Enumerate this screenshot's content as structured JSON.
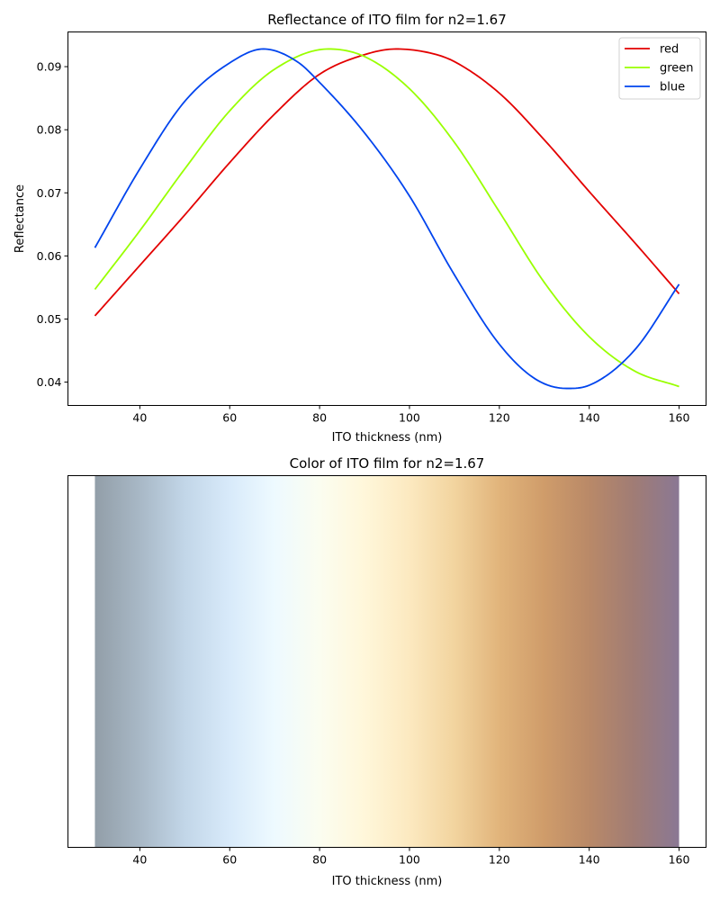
{
  "chart_data": [
    {
      "type": "line",
      "title": "Reflectance of ITO film for n2=1.67",
      "xlabel": "ITO thickness (nm)",
      "ylabel": "Reflectance",
      "xlim": [
        24,
        166
      ],
      "ylim": [
        0.0363,
        0.0955
      ],
      "xticks": [
        "40",
        "60",
        "80",
        "100",
        "120",
        "140",
        "160"
      ],
      "yticks": [
        "0.04",
        "0.05",
        "0.06",
        "0.07",
        "0.08",
        "0.09"
      ],
      "grid": false,
      "legend": "top-right",
      "series": [
        {
          "name": "red",
          "color": "#e30000",
          "x": [
            30,
            40,
            50,
            60,
            70,
            80,
            90,
            97,
            105,
            110,
            120,
            130,
            140,
            150,
            160
          ],
          "y": [
            0.0505,
            0.0585,
            0.0665,
            0.0748,
            0.0825,
            0.0888,
            0.0919,
            0.0928,
            0.0921,
            0.0908,
            0.0858,
            0.0784,
            0.0702,
            0.0622,
            0.054
          ]
        },
        {
          "name": "green",
          "color": "#99ff00",
          "x": [
            30,
            40,
            50,
            60,
            70,
            82,
            90,
            100,
            110,
            120,
            130,
            140,
            150,
            160
          ],
          "y": [
            0.0547,
            0.064,
            0.0738,
            0.083,
            0.0896,
            0.0928,
            0.0916,
            0.0865,
            0.078,
            0.067,
            0.0558,
            0.0472,
            0.0418,
            0.0393
          ]
        },
        {
          "name": "blue",
          "color": "#0044ee",
          "x": [
            30,
            40,
            50,
            60,
            67.5,
            75,
            80,
            90,
            100,
            110,
            120,
            128,
            135,
            140,
            150,
            160
          ],
          "y": [
            0.0613,
            0.0738,
            0.0845,
            0.0906,
            0.0928,
            0.0908,
            0.0875,
            0.0795,
            0.0695,
            0.057,
            0.046,
            0.0405,
            0.039,
            0.0395,
            0.045,
            0.0555
          ]
        }
      ]
    },
    {
      "type": "heatmap",
      "title": "Color of ITO film for n2=1.67",
      "xlabel": "ITO thickness (nm)",
      "xlim": [
        24,
        166
      ],
      "xticks": [
        "40",
        "60",
        "80",
        "100",
        "120",
        "140",
        "160"
      ],
      "grid": false,
      "color_stops": [
        {
          "x": 30,
          "color": "#929ea8"
        },
        {
          "x": 40,
          "color": "#a8b8c6"
        },
        {
          "x": 50,
          "color": "#c2d6e8"
        },
        {
          "x": 60,
          "color": "#d8eafa"
        },
        {
          "x": 70,
          "color": "#eefaff"
        },
        {
          "x": 80,
          "color": "#fbfdf0"
        },
        {
          "x": 90,
          "color": "#fff7da"
        },
        {
          "x": 100,
          "color": "#fce9c0"
        },
        {
          "x": 110,
          "color": "#f2d49f"
        },
        {
          "x": 120,
          "color": "#e1b47b"
        },
        {
          "x": 130,
          "color": "#cf9c6a"
        },
        {
          "x": 140,
          "color": "#b98968"
        },
        {
          "x": 150,
          "color": "#a07c75"
        },
        {
          "x": 160,
          "color": "#8a7894"
        }
      ]
    }
  ]
}
